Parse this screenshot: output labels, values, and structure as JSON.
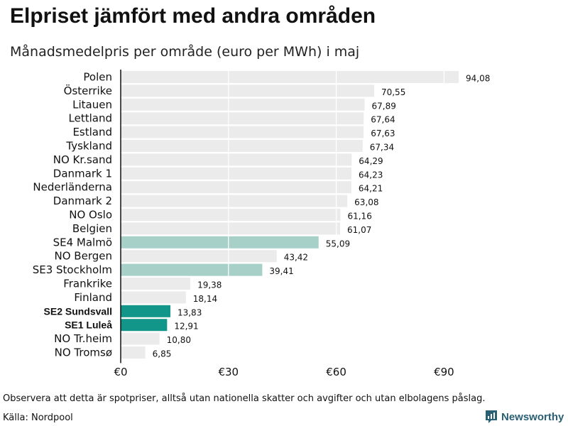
{
  "title": "Elpriset jämfört med andra områden",
  "subtitle": "Månadsmedelpris per område (euro per MWh) i maj",
  "note": "Observera att detta är spotpriser, alltså utan nationella skatter och avgifter och utan elbolagens påslag.",
  "source": "Källa: Nordpool",
  "brand": {
    "name": "Newsworthy",
    "icon": "newsworthy-logo-icon"
  },
  "colors": {
    "default_bar": "#ebebeb",
    "light_highlight": "#a7d0c8",
    "strong_highlight": "#12968a",
    "axis": "#111111",
    "grid": "#ffffff",
    "brand": "#2b5f73"
  },
  "chart_data": {
    "type": "bar",
    "orientation": "horizontal",
    "title": "Elpriset jämfört med andra områden",
    "subtitle": "Månadsmedelpris per område (euro per MWh) i maj",
    "xlabel": "",
    "ylabel": "",
    "xlim": [
      0,
      100
    ],
    "x_ticks": [
      0,
      30,
      60,
      90
    ],
    "x_tick_labels": [
      "€0",
      "€30",
      "€60",
      "€90"
    ],
    "grid": true,
    "categories": [
      "Polen",
      "Österrike",
      "Litauen",
      "Lettland",
      "Estland",
      "Tyskland",
      "NO Kr.sand",
      "Danmark 1",
      "Nederländerna",
      "Danmark 2",
      "NO Oslo",
      "Belgien",
      "SE4 Malmö",
      "NO Bergen",
      "SE3 Stockholm",
      "Frankrike",
      "Finland",
      "SE2 Sundsvall",
      "SE1 Luleå",
      "NO Tr.heim",
      "NO Tromsø"
    ],
    "values": [
      94.08,
      70.55,
      67.89,
      67.64,
      67.63,
      67.34,
      64.29,
      64.23,
      64.21,
      63.08,
      61.16,
      61.07,
      55.09,
      43.42,
      39.41,
      19.38,
      18.14,
      13.83,
      12.91,
      10.8,
      6.85
    ],
    "value_labels": [
      "94,08",
      "70,55",
      "67,89",
      "67,64",
      "67,63",
      "67,34",
      "64,29",
      "64,23",
      "64,21",
      "63,08",
      "61,16",
      "61,07",
      "55,09",
      "43,42",
      "39,41",
      "19,38",
      "18,14",
      "13,83",
      "12,91",
      "10,80",
      "6,85"
    ],
    "highlight": [
      "none",
      "none",
      "none",
      "none",
      "none",
      "none",
      "none",
      "none",
      "none",
      "none",
      "none",
      "none",
      "light",
      "none",
      "light",
      "none",
      "none",
      "strong",
      "strong",
      "none",
      "none"
    ]
  }
}
